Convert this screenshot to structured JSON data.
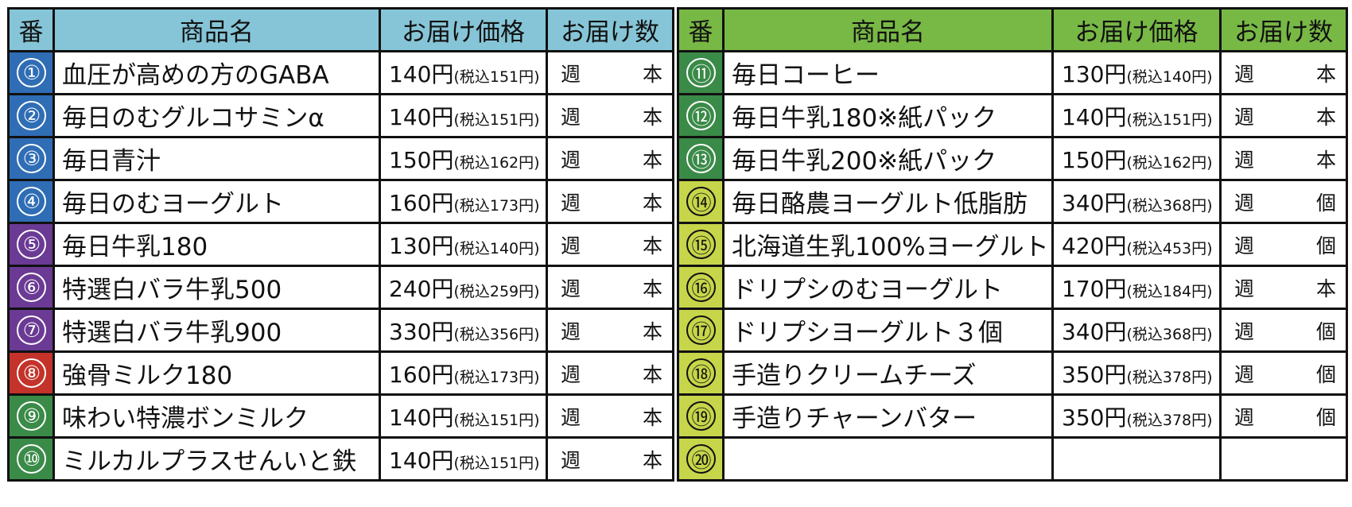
{
  "colors": {
    "header_left": "#86c5d7",
    "header_right": "#78b845",
    "blue": "#2f6db5",
    "purple": "#6a3a94",
    "red": "#c3332a",
    "green": "#3a8a48",
    "lime": "#c7d54a"
  },
  "left": {
    "headers": [
      "番",
      "商品名",
      "お届け価格",
      "お届け数"
    ],
    "rows": [
      {
        "num": "①",
        "name": "血圧が高めの方のGABA",
        "price": "140円",
        "tax": "(税込151円)",
        "week": "週",
        "unit": "本",
        "color": "#2f6db5",
        "dark": false
      },
      {
        "num": "②",
        "name": "毎日のむグルコサミンα",
        "price": "140円",
        "tax": "(税込151円)",
        "week": "週",
        "unit": "本",
        "color": "#2f6db5",
        "dark": false
      },
      {
        "num": "③",
        "name": "毎日青汁",
        "price": "150円",
        "tax": "(税込162円)",
        "week": "週",
        "unit": "本",
        "color": "#2f6db5",
        "dark": false
      },
      {
        "num": "④",
        "name": "毎日のむヨーグルト",
        "price": "160円",
        "tax": "(税込173円)",
        "week": "週",
        "unit": "本",
        "color": "#2f6db5",
        "dark": false
      },
      {
        "num": "⑤",
        "name": "毎日牛乳180",
        "price": "130円",
        "tax": "(税込140円)",
        "week": "週",
        "unit": "本",
        "color": "#6a3a94",
        "dark": false
      },
      {
        "num": "⑥",
        "name": "特選白バラ牛乳500",
        "price": "240円",
        "tax": "(税込259円)",
        "week": "週",
        "unit": "本",
        "color": "#6a3a94",
        "dark": false
      },
      {
        "num": "⑦",
        "name": "特選白バラ牛乳900",
        "price": "330円",
        "tax": "(税込356円)",
        "week": "週",
        "unit": "本",
        "color": "#6a3a94",
        "dark": false
      },
      {
        "num": "⑧",
        "name": "強骨ミルク180",
        "price": "160円",
        "tax": "(税込173円)",
        "week": "週",
        "unit": "本",
        "color": "#c3332a",
        "dark": false
      },
      {
        "num": "⑨",
        "name": "味わい特濃ボンミルク",
        "price": "140円",
        "tax": "(税込151円)",
        "week": "週",
        "unit": "本",
        "color": "#3a8a48",
        "dark": false
      },
      {
        "num": "⑩",
        "name": "ミルカルプラスせんいと鉄",
        "price": "140円",
        "tax": "(税込151円)",
        "week": "週",
        "unit": "本",
        "color": "#3a8a48",
        "dark": false
      }
    ]
  },
  "right": {
    "headers": [
      "番",
      "商品名",
      "お届け価格",
      "お届け数"
    ],
    "rows": [
      {
        "num": "⑪",
        "name": "毎日コーヒー",
        "price": "130円",
        "tax": "(税込140円)",
        "week": "週",
        "unit": "本",
        "color": "#3a8a48",
        "dark": false
      },
      {
        "num": "⑫",
        "name": "毎日牛乳180※紙パック",
        "price": "140円",
        "tax": "(税込151円)",
        "week": "週",
        "unit": "本",
        "color": "#3a8a48",
        "dark": false
      },
      {
        "num": "⑬",
        "name": "毎日牛乳200※紙パック",
        "price": "150円",
        "tax": "(税込162円)",
        "week": "週",
        "unit": "本",
        "color": "#3a8a48",
        "dark": false
      },
      {
        "num": "⑭",
        "name": "毎日酪農ヨーグルト低脂肪",
        "price": "340円",
        "tax": "(税込368円)",
        "week": "週",
        "unit": "個",
        "color": "#c7d54a",
        "dark": true
      },
      {
        "num": "⑮",
        "name": "北海道生乳100%ヨーグルト",
        "price": "420円",
        "tax": "(税込453円)",
        "week": "週",
        "unit": "個",
        "color": "#c7d54a",
        "dark": true
      },
      {
        "num": "⑯",
        "name": "ドリプシのむヨーグルト",
        "price": "170円",
        "tax": "(税込184円)",
        "week": "週",
        "unit": "本",
        "color": "#c7d54a",
        "dark": true
      },
      {
        "num": "⑰",
        "name": "ドリプシヨーグルト３個",
        "price": "340円",
        "tax": "(税込368円)",
        "week": "週",
        "unit": "個",
        "color": "#c7d54a",
        "dark": true
      },
      {
        "num": "⑱",
        "name": "手造りクリームチーズ",
        "price": "350円",
        "tax": "(税込378円)",
        "week": "週",
        "unit": "個",
        "color": "#c7d54a",
        "dark": true
      },
      {
        "num": "⑲",
        "name": "手造りチャーンバター",
        "price": "350円",
        "tax": "(税込378円)",
        "week": "週",
        "unit": "個",
        "color": "#c7d54a",
        "dark": true
      },
      {
        "num": "⑳",
        "name": "",
        "price": "",
        "tax": "",
        "week": "",
        "unit": "",
        "color": "#c7d54a",
        "dark": true
      }
    ]
  }
}
